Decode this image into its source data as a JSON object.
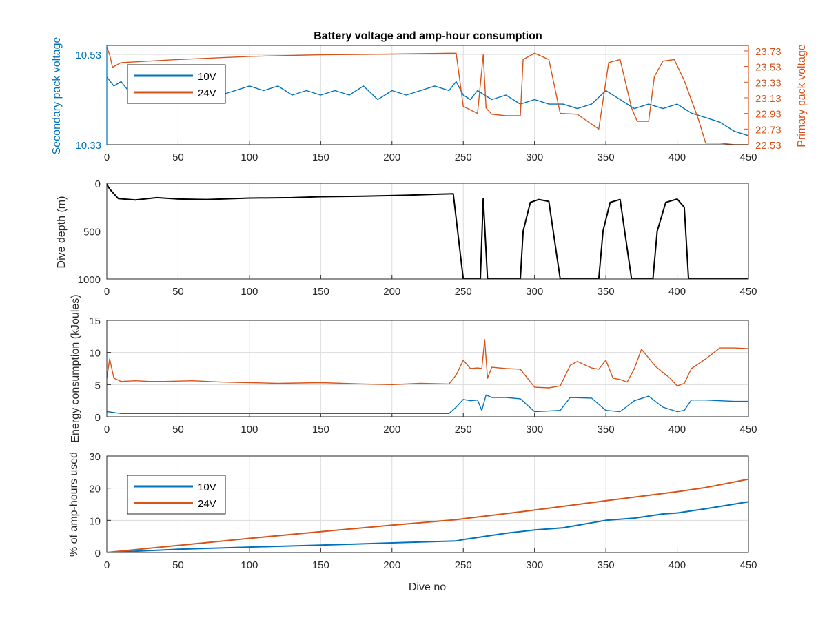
{
  "colors": {
    "10V": "#0072bd",
    "24V": "#d95319",
    "depth": "#000000"
  },
  "chart_data": [
    {
      "type": "line",
      "title": "Battery voltage and amp-hour consumption",
      "xlabel": "",
      "ylabel_left": "Secondary pack voltage",
      "ylabel_right": "Primary pack voltage",
      "xlim": [
        0,
        450
      ],
      "ylim_left": [
        10.33,
        10.55
      ],
      "ylim_right": [
        22.53,
        23.8
      ],
      "x_ticks": [
        "0",
        "50",
        "100",
        "150",
        "200",
        "250",
        "300",
        "350",
        "400",
        "450"
      ],
      "left_ticks": [
        "10.33",
        "10.53"
      ],
      "right_ticks": [
        "22.53",
        "22.73",
        "22.93",
        "23.13",
        "23.33",
        "23.53",
        "23.73"
      ],
      "grid": true,
      "legend": "top-left",
      "series": [
        {
          "name": "10V",
          "axis": "left",
          "x": [
            0,
            5,
            10,
            15,
            20,
            30,
            40,
            50,
            60,
            70,
            80,
            90,
            100,
            110,
            120,
            130,
            140,
            150,
            160,
            170,
            180,
            190,
            200,
            210,
            220,
            230,
            240,
            245,
            250,
            255,
            260,
            270,
            280,
            290,
            300,
            310,
            320,
            330,
            340,
            350,
            360,
            370,
            380,
            390,
            400,
            410,
            420,
            430,
            440,
            450
          ],
          "values": [
            10.48,
            10.46,
            10.47,
            10.45,
            10.47,
            10.44,
            10.45,
            10.43,
            10.45,
            10.43,
            10.44,
            10.45,
            10.46,
            10.45,
            10.46,
            10.44,
            10.45,
            10.44,
            10.45,
            10.44,
            10.46,
            10.43,
            10.45,
            10.44,
            10.45,
            10.46,
            10.45,
            10.47,
            10.44,
            10.43,
            10.45,
            10.43,
            10.44,
            10.42,
            10.43,
            10.42,
            10.42,
            10.41,
            10.42,
            10.45,
            10.43,
            10.41,
            10.42,
            10.41,
            10.42,
            10.4,
            10.39,
            10.38,
            10.36,
            10.35
          ]
        },
        {
          "name": "24V",
          "axis": "right",
          "x": [
            0,
            2,
            4,
            10,
            50,
            100,
            150,
            200,
            240,
            245,
            250,
            260,
            264,
            266,
            270,
            280,
            290,
            292,
            300,
            310,
            318,
            330,
            345,
            352,
            360,
            368,
            372,
            380,
            384,
            390,
            398,
            405,
            415,
            420,
            430,
            440,
            450
          ],
          "values": [
            23.78,
            23.68,
            23.52,
            23.58,
            23.62,
            23.66,
            23.68,
            23.69,
            23.7,
            23.7,
            23.02,
            22.93,
            23.68,
            23.0,
            22.92,
            22.9,
            22.9,
            23.62,
            23.7,
            23.62,
            22.93,
            22.92,
            22.73,
            23.58,
            23.62,
            23.0,
            22.83,
            22.83,
            23.4,
            23.6,
            23.62,
            23.35,
            22.85,
            22.55,
            22.55,
            22.53,
            22.53
          ]
        }
      ]
    },
    {
      "type": "line",
      "title": "",
      "xlabel": "",
      "ylabel": "Dive depth (m)",
      "xlim": [
        0,
        450
      ],
      "ylim": [
        0,
        1000
      ],
      "y_reversed": true,
      "x_ticks": [
        "0",
        "50",
        "100",
        "150",
        "200",
        "250",
        "300",
        "350",
        "400",
        "450"
      ],
      "y_ticks": [
        "0",
        "500",
        "1000"
      ],
      "grid": true,
      "series": [
        {
          "x": [
            0,
            2,
            5,
            8,
            20,
            35,
            50,
            70,
            100,
            130,
            150,
            180,
            210,
            230,
            243,
            250,
            262,
            264,
            267,
            270,
            290,
            292,
            297,
            303,
            310,
            318,
            345,
            348,
            353,
            360,
            368,
            383,
            386,
            392,
            400,
            405,
            408,
            420,
            450
          ],
          "values": [
            10,
            60,
            110,
            160,
            175,
            150,
            165,
            170,
            155,
            150,
            140,
            135,
            125,
            115,
            110,
            1000,
            1000,
            160,
            1000,
            1000,
            1000,
            500,
            200,
            170,
            190,
            1000,
            1000,
            500,
            200,
            170,
            1000,
            1000,
            500,
            200,
            165,
            250,
            1000,
            1000,
            1000
          ]
        }
      ]
    },
    {
      "type": "line",
      "title": "",
      "xlabel": "",
      "ylabel": "Energy consumption (kJoules)",
      "xlim": [
        0,
        450
      ],
      "ylim": [
        0,
        15
      ],
      "x_ticks": [
        "0",
        "50",
        "100",
        "150",
        "200",
        "250",
        "300",
        "350",
        "400",
        "450"
      ],
      "y_ticks": [
        "0",
        "5",
        "10",
        "15"
      ],
      "grid": true,
      "series": [
        {
          "name": "24V",
          "x": [
            0,
            2,
            5,
            10,
            20,
            30,
            40,
            60,
            80,
            100,
            120,
            150,
            180,
            200,
            220,
            240,
            245,
            250,
            255,
            260,
            263,
            265,
            267,
            270,
            280,
            290,
            300,
            310,
            318,
            325,
            330,
            340,
            345,
            350,
            355,
            360,
            365,
            370,
            375,
            385,
            395,
            400,
            405,
            410,
            420,
            430,
            440,
            450
          ],
          "values": [
            6.0,
            9.0,
            6.0,
            5.5,
            5.6,
            5.5,
            5.5,
            5.6,
            5.4,
            5.3,
            5.2,
            5.3,
            5.1,
            5.0,
            5.2,
            5.1,
            6.5,
            8.8,
            7.5,
            7.6,
            7.5,
            12.0,
            6.0,
            7.7,
            7.5,
            7.4,
            4.6,
            4.5,
            4.8,
            8.0,
            8.6,
            7.6,
            7.4,
            8.8,
            6.0,
            5.8,
            5.4,
            7.5,
            10.5,
            7.8,
            6.0,
            4.8,
            5.2,
            7.5,
            9.0,
            10.7,
            10.7,
            10.6
          ]
        },
        {
          "name": "10V",
          "x": [
            0,
            10,
            50,
            100,
            150,
            200,
            240,
            245,
            250,
            255,
            260,
            263,
            266,
            270,
            280,
            290,
            300,
            310,
            318,
            325,
            340,
            350,
            360,
            370,
            380,
            390,
            400,
            405,
            410,
            420,
            430,
            440,
            450
          ],
          "values": [
            0.8,
            0.5,
            0.5,
            0.5,
            0.5,
            0.5,
            0.5,
            1.5,
            2.7,
            2.5,
            2.6,
            1.0,
            3.4,
            3.0,
            3.0,
            2.8,
            0.8,
            0.9,
            1.0,
            3.0,
            2.9,
            1.0,
            0.8,
            2.5,
            3.2,
            1.5,
            0.8,
            1.0,
            2.6,
            2.6,
            2.5,
            2.4,
            2.4
          ]
        }
      ]
    },
    {
      "type": "line",
      "title": "",
      "xlabel": "Dive no",
      "ylabel": "% of amp-hours used",
      "xlim": [
        0,
        450
      ],
      "ylim": [
        0,
        30
      ],
      "x_ticks": [
        "0",
        "50",
        "100",
        "150",
        "200",
        "250",
        "300",
        "350",
        "400",
        "450"
      ],
      "y_ticks": [
        "0",
        "10",
        "20",
        "30"
      ],
      "grid": true,
      "legend": "top-left",
      "series": [
        {
          "name": "10V",
          "x": [
            0,
            50,
            100,
            150,
            200,
            245,
            250,
            280,
            300,
            320,
            350,
            370,
            390,
            400,
            420,
            450
          ],
          "values": [
            0,
            1.0,
            1.7,
            2.3,
            3.0,
            3.6,
            4.0,
            6.0,
            7.0,
            7.7,
            10.0,
            10.7,
            12.0,
            12.3,
            13.6,
            15.8
          ]
        },
        {
          "name": "24V",
          "x": [
            0,
            50,
            100,
            150,
            200,
            245,
            250,
            300,
            350,
            400,
            420,
            450
          ],
          "values": [
            0,
            2.2,
            4.4,
            6.5,
            8.5,
            10.2,
            10.5,
            13.2,
            16.1,
            18.9,
            20.2,
            22.8
          ]
        }
      ]
    }
  ]
}
